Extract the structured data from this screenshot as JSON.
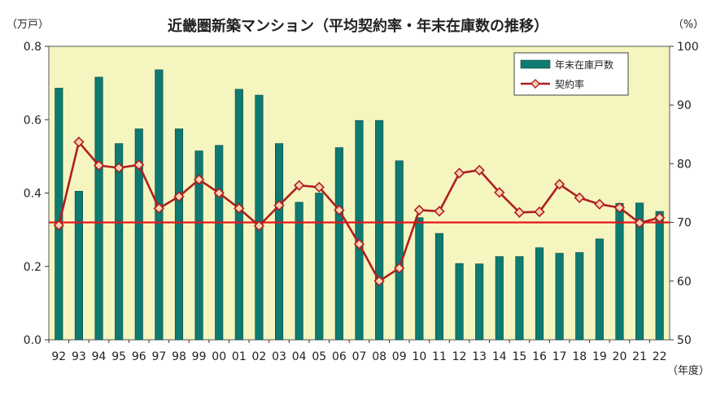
{
  "chart_data": {
    "type": "bar+line",
    "title": "近畿圏新築マンション（平均契約率・年末在庫数の推移）",
    "y_left_unit": "（万戸）",
    "y_right_unit": "（%）",
    "x_unit": "（年度）",
    "categories": [
      "92",
      "93",
      "94",
      "95",
      "96",
      "97",
      "98",
      "99",
      "00",
      "01",
      "02",
      "03",
      "04",
      "05",
      "06",
      "07",
      "08",
      "09",
      "10",
      "11",
      "12",
      "13",
      "14",
      "15",
      "16",
      "17",
      "18",
      "19",
      "20",
      "21",
      "22"
    ],
    "y_left_range": [
      0,
      0.8
    ],
    "y_left_ticks": [
      "0.0",
      "0.2",
      "0.4",
      "0.6",
      "0.8"
    ],
    "y_right_range": [
      50,
      100
    ],
    "y_right_ticks": [
      "50",
      "60",
      "70",
      "80",
      "90",
      "100"
    ],
    "series": [
      {
        "name": "年末在庫戸数",
        "type": "bar",
        "axis": "left",
        "color": "#0e7a70",
        "values": [
          0.686,
          0.405,
          0.716,
          0.535,
          0.575,
          0.736,
          0.575,
          0.515,
          0.53,
          0.683,
          0.667,
          0.535,
          0.375,
          0.4,
          0.524,
          0.598,
          0.598,
          0.488,
          0.333,
          0.29,
          0.208,
          0.207,
          0.227,
          0.227,
          0.251,
          0.236,
          0.238,
          0.275,
          0.372,
          0.373,
          0.35
        ]
      },
      {
        "name": "契約率",
        "type": "line",
        "axis": "right",
        "color": "#b01e1e",
        "marker_fill": "#f7d3b2",
        "values": [
          69.5,
          83.7,
          79.7,
          79.3,
          79.8,
          72.4,
          74.4,
          77.3,
          75.0,
          72.4,
          69.4,
          72.9,
          76.3,
          76.0,
          72.1,
          66.3,
          60.0,
          62.2,
          72.1,
          71.9,
          78.4,
          78.9,
          75.1,
          71.7,
          71.8,
          76.5,
          74.2,
          73.1,
          72.5,
          69.9,
          70.8
        ]
      }
    ],
    "reference_line": {
      "value": 70,
      "axis": "right",
      "color": "#e8141b"
    },
    "legend_position": "top-right",
    "plot_background": "#f5f5c0",
    "grid": false
  }
}
